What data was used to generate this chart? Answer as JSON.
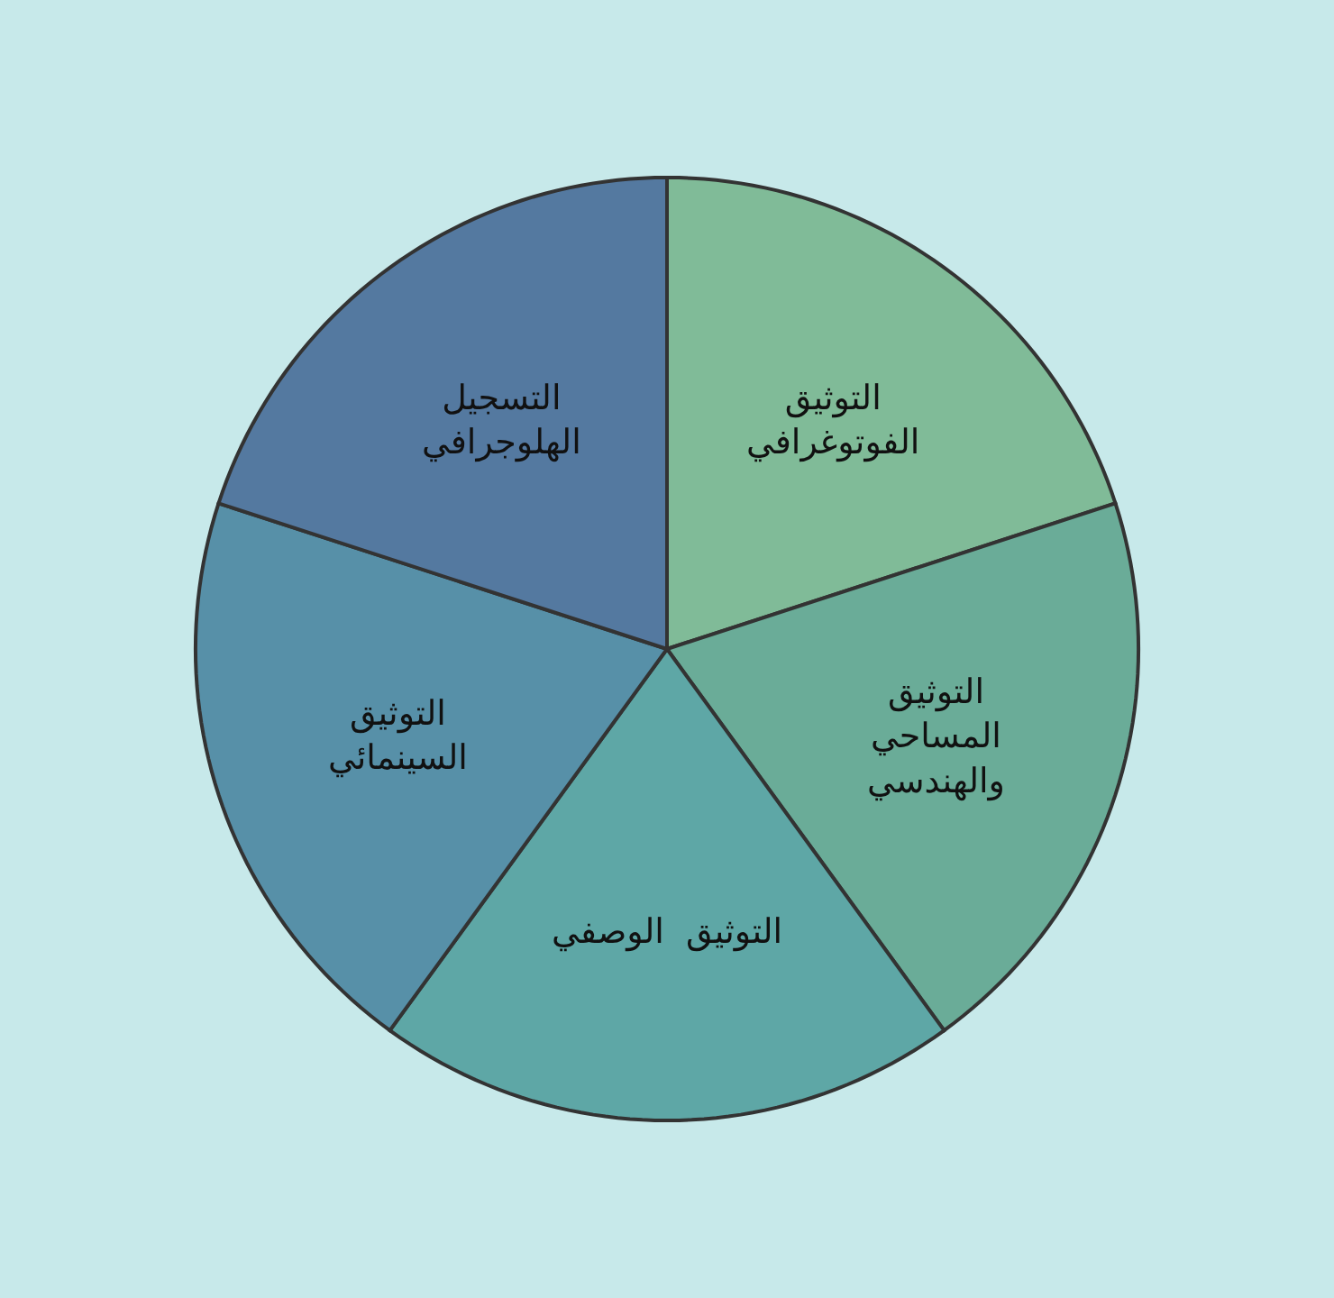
{
  "chart_data": {
    "type": "pie",
    "categories": [
      "التوثيق\nالفوتوغرافي",
      "التوثيق\nالمساحي\nوالهندسي",
      "التوثيق  الوصفي",
      "التوثيق\nالسينمائي",
      "التسجيل\nالهلوجرافي"
    ],
    "values": [
      20,
      20,
      20,
      20,
      20
    ],
    "colors": [
      "#80bb98",
      "#6aac98",
      "#5ea7a6",
      "#5790a8",
      "#5479a0"
    ],
    "legend": false
  }
}
